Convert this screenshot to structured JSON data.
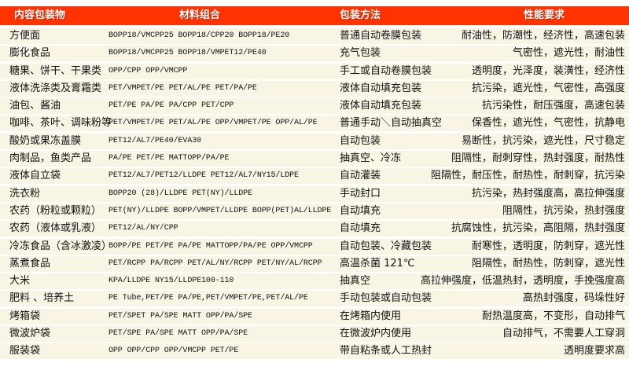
{
  "header": {
    "col1": "内容包装物",
    "col2": "材料组合",
    "col3": "包装方法",
    "col4": "性能要求"
  },
  "colors": {
    "header_bg": "#ff3300",
    "row_bg": "#f8f5e4"
  },
  "rows": [
    {
      "item": "方便面",
      "materials": "BOPP18/VMCPP25  BOPP18/CPP20  BOPP18/PE20",
      "method": "普通自动卷膜包装",
      "requirements": "耐油性，防潮性，经济性，高速包装"
    },
    {
      "item": "膨化食品",
      "materials": "BOPP18/VMCPP25  BOPP18/VMPET12/PE40",
      "method": "充气包装",
      "requirements": "气密性，遮光性，耐油性"
    },
    {
      "item": "糖果、饼干、干果类",
      "materials": "OPP/CPP OPP/VMCPP",
      "method": "手工或自动卷膜包装",
      "requirements": "透明度，光泽度，装潢性，经济性"
    },
    {
      "item": "液体洗涤类及膏霜类",
      "materials": "PET/VMPET/PE PET/AL/PE  PET/PA/PE",
      "method": "液体自动填充包装",
      "requirements": "抗污染，遮光性，气密性，高强度"
    },
    {
      "item": "油包、酱油",
      "materials": "PET/PE  PA/PE PA/CPP PET/CPP",
      "method": "液体自动填充包装",
      "requirements": "抗污染性，耐压强度，高速包装"
    },
    {
      "item": "咖啡、茶叶、调味粉等",
      "materials": "PET/VMPET/PE PET/AL/PE OPP/VMPET/PE OPP/AL/PE",
      "method": "普通手动＼自动抽真空",
      "requirements": "保香性，遮光性，气密性，抗静电"
    },
    {
      "item": "酸奶或果冻盖膜",
      "materials": "PET12/AL7/PE40/EVA30",
      "method": "自动包装",
      "requirements": "易断性，抗污染，遮光性，尺寸稳定"
    },
    {
      "item": "肉制品，鱼类产品",
      "materials": "PA/PE PET/PE MATTOPP/PA/PE",
      "method": "抽真空、冷冻",
      "requirements": "阻隔性，耐刺穿性，热封强度，耐热性"
    },
    {
      "item": "液体自立袋",
      "materials": "PET12/AL7/PET12/LLDPE PET12/AL7/NY15/LDPE",
      "method": "自动灌装",
      "requirements": "阻隔性，耐压性，耐热性，耐刺穿，抗污染"
    },
    {
      "item": "洗衣粉",
      "materials": "BOPP20 (28)/LLDPE PET(NY)/LLDPE",
      "method": "手动封口",
      "requirements": "抗污染，热封强度高，高拉伸强度"
    },
    {
      "item": "农药（粉粒或颗粒）",
      "materials": "PET(NY)/LLDPE BOPP/VMPET/LLDPE BOPP(PET)AL/LLDPE",
      "method": "自动填充",
      "requirements": "阻隔性，抗污染，热封强度"
    },
    {
      "item": "农药（液体或乳液）",
      "materials": "PET12/AL/NY/CPP",
      "method": "自动填充",
      "requirements": "抗腐蚀性，抗污染，高阻隔，热封强度"
    },
    {
      "item": "冷冻食品（含冰激凌）",
      "materials": "BOPP/PE PET/PE PA/PE MATTOPP/PA/PE OPP/VMCPP",
      "method": "自动包装、冷藏包装",
      "requirements": "耐寒性，透明度，防刺穿，遮光性"
    },
    {
      "item": "蒸煮食品",
      "materials": "PET/RCPP PA/RCPP PET/AL/NY/RCPP PET/NY/AL/RCPP",
      "method": "高温杀菌 121℃",
      "requirements": "阻隔性，耐热性，防刺穿，遮光性"
    },
    {
      "item": "大米",
      "materials": "KPA/LLDPE NY15/LLDPE100-110",
      "method": "抽真空",
      "requirements": "高拉伸强度，低温热封，透明度，手挽强度高"
    },
    {
      "item": "肥料 、培养土",
      "materials": "PE Tube,PET/PE  PA/PE,PET/VMPET/PE,PET/AL/PE",
      "method": "手动包装或自动包装",
      "requirements": "高热封强度，码垛性好"
    },
    {
      "item": "烤箱袋",
      "materials": "PET/SPET PA/SPE MATT OPP/PA/SPE",
      "method": "在烤箱内使用",
      "requirements": "耐热温度高，不变形，自动排气"
    },
    {
      "item": "微波炉袋",
      "materials": "PET/SPE PA/SPE MATT OPP/PA/SPE",
      "method": "在微波炉内使用",
      "requirements": "自动排气，不需要人工穿洞"
    },
    {
      "item": "服装袋",
      "materials": "OPP  OPP/CPP OPP/VMCPP PET/PE",
      "method": "带自粘条或人工热封",
      "requirements": "透明度要求高"
    }
  ]
}
